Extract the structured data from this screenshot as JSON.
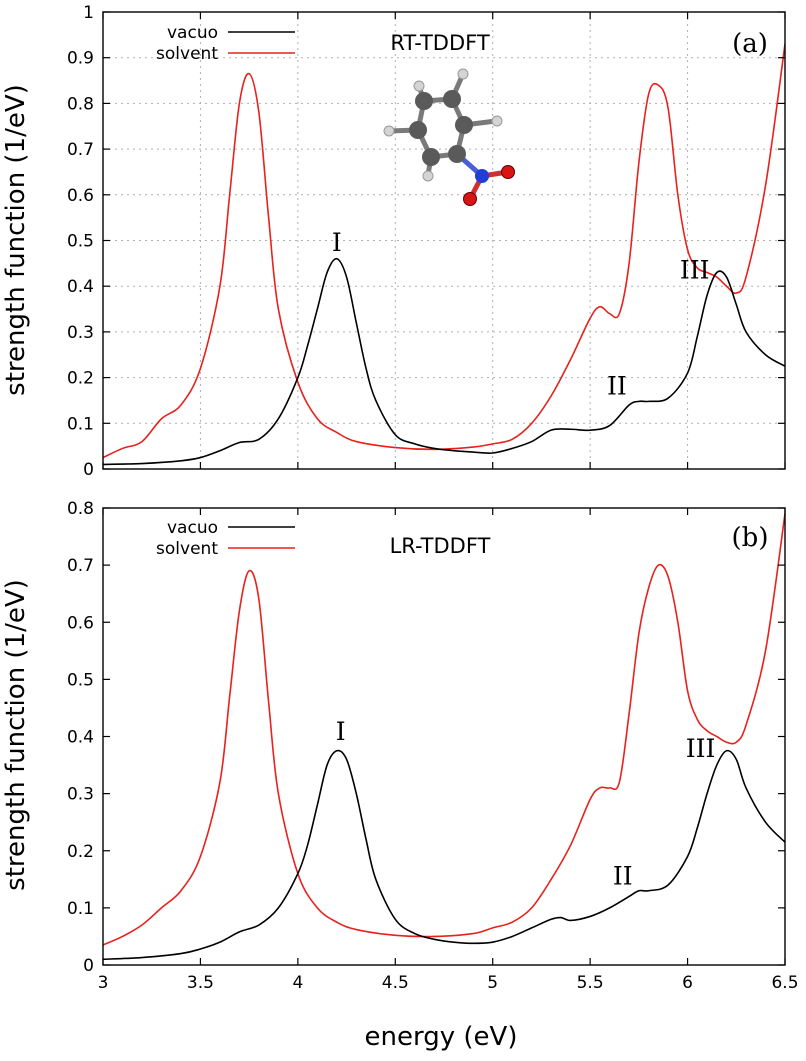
{
  "xlabel": "energy (eV)",
  "ylabel": "strength function (1/eV)",
  "colors": {
    "vacuo": "#000000",
    "solvent": "#e8211d",
    "carbon": "#555555",
    "hydrogen": "#d0d0d0",
    "nitrogen": "#1f3fd6",
    "oxygen": "#d81414"
  },
  "molecule_icon": "nitrobenzene-ball-and-stick",
  "chart_data": [
    {
      "type": "line",
      "panel": "(a)",
      "method": "RT-TDDFT",
      "legend": [
        "vacuo",
        "solvent"
      ],
      "legend_position": "top-left",
      "grid": true,
      "xlim": [
        3,
        6.5
      ],
      "ylim": [
        0,
        1
      ],
      "xticks": [
        "3",
        "3.5",
        "4",
        "4.5",
        "5",
        "5.5",
        "6",
        "6.5"
      ],
      "yticks": [
        "0",
        "0.1",
        "0.2",
        "0.3",
        "0.4",
        "0.5",
        "0.6",
        "0.7",
        "0.8",
        "0.9",
        "1"
      ],
      "peak_labels": [
        {
          "text": "I",
          "x": 4.2,
          "y": 0.46
        },
        {
          "text": "II",
          "x": 5.75,
          "y": 0.15
        },
        {
          "text": "III",
          "x": 6.17,
          "y": 0.43
        }
      ],
      "series": [
        {
          "name": "vacuo",
          "x": [
            3.0,
            3.2,
            3.4,
            3.5,
            3.6,
            3.7,
            3.8,
            3.9,
            4.0,
            4.05,
            4.1,
            4.15,
            4.2,
            4.25,
            4.3,
            4.35,
            4.4,
            4.5,
            4.6,
            4.7,
            4.8,
            4.9,
            5.0,
            5.1,
            5.2,
            5.3,
            5.4,
            5.5,
            5.6,
            5.7,
            5.75,
            5.8,
            5.9,
            6.0,
            6.05,
            6.1,
            6.15,
            6.2,
            6.25,
            6.3,
            6.4,
            6.5
          ],
          "y": [
            0.01,
            0.012,
            0.018,
            0.025,
            0.04,
            0.058,
            0.065,
            0.11,
            0.2,
            0.27,
            0.35,
            0.43,
            0.46,
            0.42,
            0.32,
            0.22,
            0.15,
            0.075,
            0.055,
            0.045,
            0.04,
            0.037,
            0.035,
            0.045,
            0.06,
            0.085,
            0.087,
            0.085,
            0.095,
            0.14,
            0.148,
            0.148,
            0.155,
            0.21,
            0.29,
            0.38,
            0.43,
            0.42,
            0.36,
            0.3,
            0.25,
            0.225
          ]
        },
        {
          "name": "solvent",
          "x": [
            3.0,
            3.1,
            3.2,
            3.3,
            3.4,
            3.5,
            3.6,
            3.65,
            3.7,
            3.75,
            3.8,
            3.85,
            3.9,
            4.0,
            4.1,
            4.2,
            4.3,
            4.5,
            4.7,
            4.9,
            5.0,
            5.1,
            5.2,
            5.3,
            5.4,
            5.5,
            5.55,
            5.6,
            5.65,
            5.7,
            5.75,
            5.8,
            5.85,
            5.9,
            5.95,
            6.0,
            6.05,
            6.1,
            6.15,
            6.2,
            6.25,
            6.3,
            6.4,
            6.5
          ],
          "y": [
            0.025,
            0.045,
            0.06,
            0.11,
            0.14,
            0.22,
            0.4,
            0.6,
            0.8,
            0.865,
            0.78,
            0.55,
            0.35,
            0.19,
            0.11,
            0.08,
            0.06,
            0.047,
            0.043,
            0.048,
            0.055,
            0.065,
            0.1,
            0.16,
            0.24,
            0.33,
            0.355,
            0.34,
            0.34,
            0.45,
            0.67,
            0.82,
            0.84,
            0.79,
            0.6,
            0.48,
            0.44,
            0.43,
            0.42,
            0.4,
            0.385,
            0.42,
            0.62,
            0.93
          ]
        }
      ]
    },
    {
      "type": "line",
      "panel": "(b)",
      "method": "LR-TDDFT",
      "legend": [
        "vacuo",
        "solvent"
      ],
      "legend_position": "top-left",
      "grid": false,
      "xlim": [
        3,
        6.5
      ],
      "ylim": [
        0,
        0.8
      ],
      "xticks": [
        "3",
        "3.5",
        "4",
        "4.5",
        "5",
        "5.5",
        "6",
        "6.5"
      ],
      "yticks": [
        "0",
        "0.1",
        "0.2",
        "0.3",
        "0.4",
        "0.5",
        "0.6",
        "0.7",
        "0.8"
      ],
      "peak_labels": [
        {
          "text": "I",
          "x": 4.22,
          "y": 0.38
        },
        {
          "text": "II",
          "x": 5.78,
          "y": 0.13
        },
        {
          "text": "III",
          "x": 6.2,
          "y": 0.375
        }
      ],
      "series": [
        {
          "name": "vacuo",
          "x": [
            3.0,
            3.2,
            3.4,
            3.5,
            3.6,
            3.7,
            3.8,
            3.9,
            4.0,
            4.05,
            4.1,
            4.15,
            4.2,
            4.25,
            4.3,
            4.35,
            4.4,
            4.5,
            4.6,
            4.7,
            4.8,
            4.9,
            5.0,
            5.1,
            5.2,
            5.3,
            5.35,
            5.4,
            5.5,
            5.6,
            5.7,
            5.75,
            5.8,
            5.9,
            6.0,
            6.05,
            6.1,
            6.15,
            6.2,
            6.25,
            6.3,
            6.4,
            6.5
          ],
          "y": [
            0.01,
            0.013,
            0.02,
            0.028,
            0.04,
            0.058,
            0.07,
            0.1,
            0.16,
            0.21,
            0.28,
            0.35,
            0.375,
            0.36,
            0.3,
            0.22,
            0.15,
            0.08,
            0.055,
            0.045,
            0.04,
            0.038,
            0.04,
            0.05,
            0.065,
            0.08,
            0.083,
            0.078,
            0.085,
            0.1,
            0.12,
            0.13,
            0.13,
            0.14,
            0.19,
            0.24,
            0.3,
            0.35,
            0.375,
            0.36,
            0.31,
            0.25,
            0.215
          ]
        },
        {
          "name": "solvent",
          "x": [
            3.0,
            3.1,
            3.2,
            3.3,
            3.4,
            3.5,
            3.6,
            3.65,
            3.7,
            3.75,
            3.8,
            3.85,
            3.9,
            4.0,
            4.1,
            4.2,
            4.3,
            4.5,
            4.7,
            4.9,
            5.0,
            5.1,
            5.2,
            5.3,
            5.4,
            5.5,
            5.55,
            5.6,
            5.65,
            5.7,
            5.75,
            5.8,
            5.85,
            5.9,
            5.95,
            6.0,
            6.05,
            6.1,
            6.15,
            6.2,
            6.25,
            6.3,
            6.4,
            6.5
          ],
          "y": [
            0.035,
            0.05,
            0.07,
            0.1,
            0.13,
            0.19,
            0.32,
            0.47,
            0.62,
            0.69,
            0.64,
            0.46,
            0.3,
            0.16,
            0.1,
            0.075,
            0.062,
            0.052,
            0.05,
            0.055,
            0.065,
            0.075,
            0.1,
            0.15,
            0.21,
            0.29,
            0.31,
            0.31,
            0.32,
            0.44,
            0.58,
            0.66,
            0.7,
            0.68,
            0.6,
            0.48,
            0.43,
            0.41,
            0.4,
            0.39,
            0.39,
            0.42,
            0.55,
            0.79
          ]
        }
      ]
    }
  ]
}
